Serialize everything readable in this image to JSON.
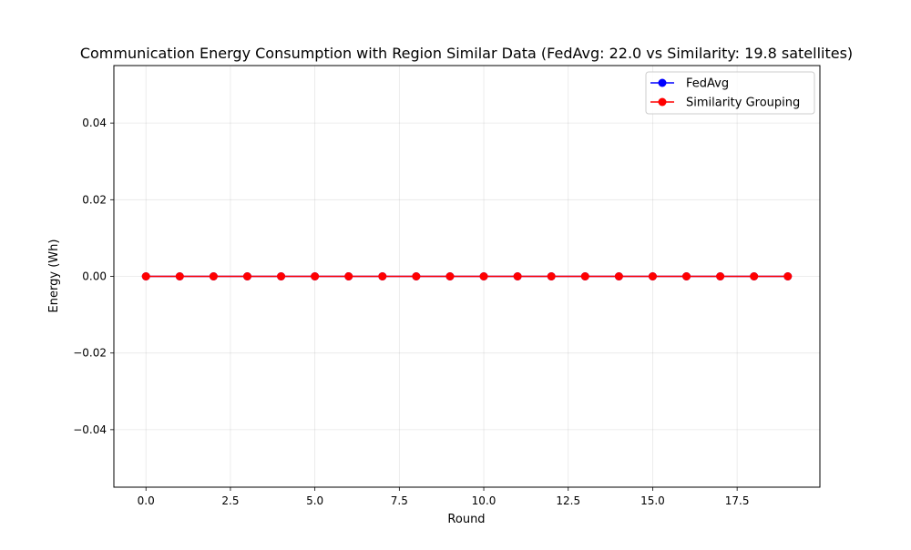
{
  "chart_data": {
    "type": "line",
    "title": "Communication Energy Consumption with Region Similar Data (FedAvg: 22.0 vs Similarity: 19.8 satellites)",
    "xlabel": "Round",
    "ylabel": "Energy (Wh)",
    "xlim": [
      -0.95,
      19.95
    ],
    "ylim": [
      -0.055,
      0.055
    ],
    "xticks": [
      0.0,
      2.5,
      5.0,
      7.5,
      10.0,
      12.5,
      15.0,
      17.5
    ],
    "xtick_labels": [
      "0.0",
      "2.5",
      "5.0",
      "7.5",
      "10.0",
      "12.5",
      "15.0",
      "17.5"
    ],
    "yticks": [
      -0.04,
      -0.02,
      0.0,
      0.02,
      0.04
    ],
    "ytick_labels": [
      "−0.04",
      "−0.02",
      "0.00",
      "0.02",
      "0.04"
    ],
    "grid": true,
    "legend_position": "top-right",
    "x": [
      0,
      1,
      2,
      3,
      4,
      5,
      6,
      7,
      8,
      9,
      10,
      11,
      12,
      13,
      14,
      15,
      16,
      17,
      18,
      19
    ],
    "series": [
      {
        "name": "FedAvg",
        "color": "#0000ff",
        "values": [
          0,
          0,
          0,
          0,
          0,
          0,
          0,
          0,
          0,
          0,
          0,
          0,
          0,
          0,
          0,
          0,
          0,
          0,
          0,
          0
        ]
      },
      {
        "name": "Similarity Grouping",
        "color": "#ff0000",
        "values": [
          0,
          0,
          0,
          0,
          0,
          0,
          0,
          0,
          0,
          0,
          0,
          0,
          0,
          0,
          0,
          0,
          0,
          0,
          0,
          0
        ]
      }
    ]
  }
}
